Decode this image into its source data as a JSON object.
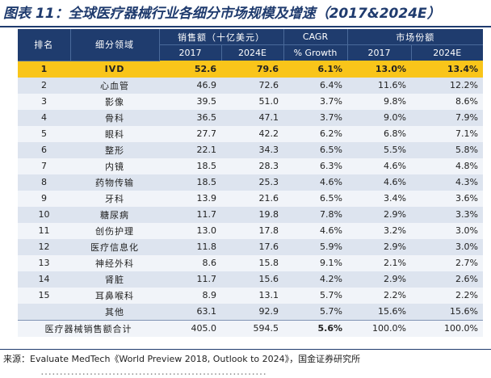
{
  "title": "图表 11：全球医疗器械行业各细分市场规模及增速（2017&2024E）",
  "headers": {
    "rank": "排名",
    "segment": "细分领域",
    "sales_group": "销售额（十亿美元）",
    "cagr_group": "CAGR",
    "share_group": "市场份额",
    "sales_2017": "2017",
    "sales_2024": "2024E",
    "cagr_sub": "% Growth",
    "share_2017": "2017",
    "share_2024": "2024E"
  },
  "rows": [
    {
      "rank": "1",
      "segment": "IVD",
      "s2017": "52.6",
      "s2024": "79.6",
      "cagr": "6.1%",
      "m2017": "13.0%",
      "m2024": "13.4%"
    },
    {
      "rank": "2",
      "segment": "心血管",
      "s2017": "46.9",
      "s2024": "72.6",
      "cagr": "6.4%",
      "m2017": "11.6%",
      "m2024": "12.2%"
    },
    {
      "rank": "3",
      "segment": "影像",
      "s2017": "39.5",
      "s2024": "51.0",
      "cagr": "3.7%",
      "m2017": "9.8%",
      "m2024": "8.6%"
    },
    {
      "rank": "4",
      "segment": "骨科",
      "s2017": "36.5",
      "s2024": "47.1",
      "cagr": "3.7%",
      "m2017": "9.0%",
      "m2024": "7.9%"
    },
    {
      "rank": "5",
      "segment": "眼科",
      "s2017": "27.7",
      "s2024": "42.2",
      "cagr": "6.2%",
      "m2017": "6.8%",
      "m2024": "7.1%"
    },
    {
      "rank": "6",
      "segment": "整形",
      "s2017": "22.1",
      "s2024": "34.3",
      "cagr": "6.5%",
      "m2017": "5.5%",
      "m2024": "5.8%"
    },
    {
      "rank": "7",
      "segment": "内镜",
      "s2017": "18.5",
      "s2024": "28.3",
      "cagr": "6.3%",
      "m2017": "4.6%",
      "m2024": "4.8%"
    },
    {
      "rank": "8",
      "segment": "药物传输",
      "s2017": "18.5",
      "s2024": "25.3",
      "cagr": "4.6%",
      "m2017": "4.6%",
      "m2024": "4.3%"
    },
    {
      "rank": "9",
      "segment": "牙科",
      "s2017": "13.9",
      "s2024": "21.6",
      "cagr": "6.5%",
      "m2017": "3.4%",
      "m2024": "3.6%"
    },
    {
      "rank": "10",
      "segment": "糖尿病",
      "s2017": "11.7",
      "s2024": "19.8",
      "cagr": "7.8%",
      "m2017": "2.9%",
      "m2024": "3.3%"
    },
    {
      "rank": "11",
      "segment": "创伤护理",
      "s2017": "13.0",
      "s2024": "17.8",
      "cagr": "4.6%",
      "m2017": "3.2%",
      "m2024": "3.0%"
    },
    {
      "rank": "12",
      "segment": "医疗信息化",
      "s2017": "11.8",
      "s2024": "17.6",
      "cagr": "5.9%",
      "m2017": "2.9%",
      "m2024": "3.0%"
    },
    {
      "rank": "13",
      "segment": "神经外科",
      "s2017": "8.6",
      "s2024": "15.8",
      "cagr": "9.1%",
      "m2017": "2.1%",
      "m2024": "2.7%"
    },
    {
      "rank": "14",
      "segment": "肾脏",
      "s2017": "11.7",
      "s2024": "15.6",
      "cagr": "4.2%",
      "m2017": "2.9%",
      "m2024": "2.6%"
    },
    {
      "rank": "15",
      "segment": "耳鼻喉科",
      "s2017": "8.9",
      "s2024": "13.1",
      "cagr": "5.7%",
      "m2017": "2.2%",
      "m2024": "2.2%"
    },
    {
      "rank": "",
      "segment": "其他",
      "s2017": "63.1",
      "s2024": "92.9",
      "cagr": "5.7%",
      "m2017": "15.6%",
      "m2024": "15.6%"
    }
  ],
  "total": {
    "label": "医疗器械销售额合计",
    "s2017": "405.0",
    "s2024": "594.5",
    "cagr": "5.6%",
    "m2017": "100.0%",
    "m2024": "100.0%"
  },
  "source": "来源：Evaluate MedTech《World Preview 2018, Outlook to 2024》，国金证券研究所",
  "cut_off_text": "……………………………………………………"
}
